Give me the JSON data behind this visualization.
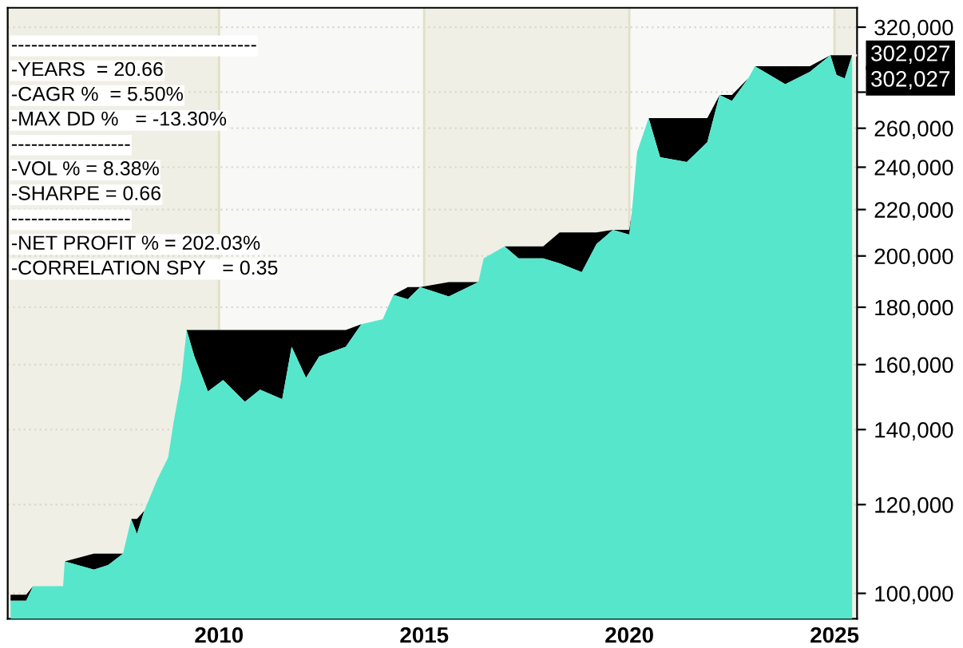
{
  "chart_data": {
    "type": "area",
    "log": true,
    "x": [
      2004.92,
      2005.3,
      2005.47,
      2006.2,
      2006.24,
      2006.95,
      2007.3,
      2007.66,
      2007.86,
      2008.0,
      2008.18,
      2008.5,
      2008.76,
      2008.89,
      2009.08,
      2009.21,
      2009.4,
      2009.73,
      2010.1,
      2010.63,
      2011.0,
      2011.54,
      2011.77,
      2012.12,
      2012.44,
      2013.09,
      2013.47,
      2013.99,
      2014.25,
      2014.6,
      2014.9,
      2015.6,
      2016.32,
      2016.45,
      2016.96,
      2017.3,
      2017.9,
      2018.3,
      2018.84,
      2019.2,
      2019.6,
      2020.0,
      2020.06,
      2020.19,
      2020.47,
      2020.75,
      2021.4,
      2021.9,
      2022.2,
      2022.5,
      2022.9,
      2023.06,
      2023.8,
      2024.4,
      2024.9,
      2025.05,
      2025.25,
      2025.43
    ],
    "series": [
      {
        "color": "#55e6cc",
        "values": [
          98500,
          98500,
          101500,
          101500,
          106800,
          105000,
          106000,
          108500,
          116500,
          113000,
          118500,
          126500,
          132200,
          141900,
          155000,
          171800,
          162700,
          151400,
          155000,
          148200,
          152000,
          149000,
          166000,
          155700,
          162700,
          166000,
          173800,
          175600,
          184600,
          183000,
          187600,
          184000,
          189500,
          199000,
          204000,
          199000,
          199000,
          197000,
          193500,
          205000,
          211000,
          209000,
          218400,
          247700,
          265500,
          245000,
          242600,
          252600,
          278400,
          275000,
          288200,
          295300,
          284600,
          292000,
          302027,
          290000,
          288000,
          302027
        ]
      },
      {
        "color": "#000000",
        "values": [
          99700,
          99700,
          101500,
          101500,
          106800,
          108500,
          108500,
          108500,
          116500,
          116500,
          118500,
          126500,
          132200,
          141900,
          155000,
          171800,
          171800,
          171800,
          171800,
          171800,
          171800,
          171800,
          171800,
          171800,
          171800,
          171800,
          173800,
          175600,
          184600,
          187600,
          187600,
          189500,
          189500,
          199000,
          204000,
          204000,
          204000,
          209900,
          209900,
          209900,
          211000,
          211000,
          218400,
          247700,
          265500,
          265500,
          265500,
          265500,
          278400,
          278400,
          288200,
          295300,
          295300,
          295300,
          302027,
          302027,
          302027,
          302027
        ]
      }
    ],
    "xlim": [
      2004.85,
      2025.55
    ],
    "ylim": [
      94900,
      333000
    ],
    "xticks": [
      2010,
      2015,
      2020,
      2025
    ],
    "yticks": [
      {
        "value": 100000,
        "label": "100,000"
      },
      {
        "value": 120000,
        "label": "120,000"
      },
      {
        "value": 140000,
        "label": "140,000"
      },
      {
        "value": 160000,
        "label": "160,000"
      },
      {
        "value": 180000,
        "label": "180,000"
      },
      {
        "value": 200000,
        "label": "200,000"
      },
      {
        "value": 220000,
        "label": "220,000"
      },
      {
        "value": 240000,
        "label": "240,000"
      },
      {
        "value": 260000,
        "label": "260,000"
      },
      {
        "value": 280000,
        "label": null
      },
      {
        "value": 320000,
        "label": "320,000"
      }
    ],
    "grid": true,
    "bands": [
      {
        "axis": "x",
        "from": 2004.85,
        "to": 2010,
        "color": "#f0efe6"
      },
      {
        "axis": "x",
        "from": 2015,
        "to": 2020,
        "color": "#f0efe6"
      },
      {
        "axis": "x",
        "from": 2025,
        "to": 2025.55,
        "color": "#f0efe6"
      }
    ],
    "annotations": [
      "-------------------------------------",
      "-YEARS  = 20.66",
      "-CAGR %  = 5.50%",
      "-MAX DD %   = -13.30%",
      "------------------",
      "-VOL % = 8.38%",
      "-SHARPE = 0.66",
      "------------------",
      "-NET PROFIT % = 202.03%",
      "-CORRELATION SPY   = 0.35",
      {
        "text": "302,027",
        "x": 2025.43,
        "y": 302027
      },
      {
        "text": "302,027",
        "x": 2025.43,
        "y": 302027
      }
    ]
  }
}
